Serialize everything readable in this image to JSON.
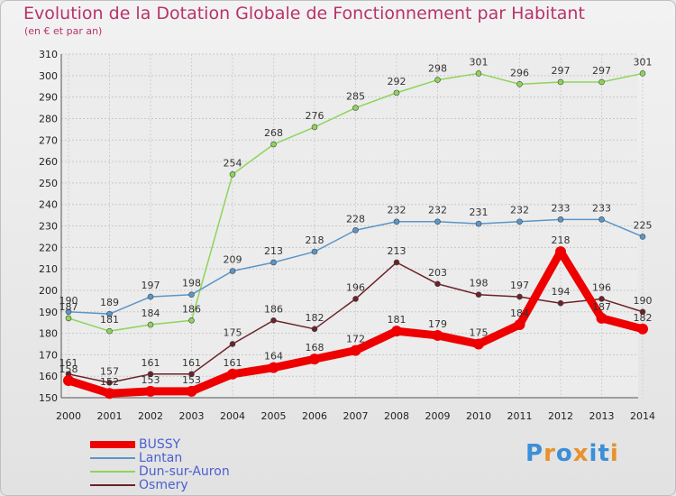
{
  "title": "Evolution de la Dotation Globale de Fonctionnement par Habitant",
  "subtitle": "(en € et par an)",
  "logo": {
    "text": "Proxiti",
    "letters": [
      "P",
      "r",
      "o",
      "x",
      "i",
      "t",
      "i"
    ],
    "colors": [
      "#3a8fd8",
      "#e8912d",
      "#3a8fd8",
      "#e8912d",
      "#3a8fd8",
      "#3a8fd8",
      "#e8912d"
    ]
  },
  "chart_data": {
    "type": "line",
    "title": "Evolution de la Dotation Globale de Fonctionnement par Habitant",
    "ylabel": "(en € et par an)",
    "categories": [
      "2000",
      "2001",
      "2002",
      "2003",
      "2004",
      "2005",
      "2006",
      "2007",
      "2008",
      "2009",
      "2010",
      "2011",
      "2012",
      "2013",
      "2014"
    ],
    "ylim": [
      150,
      310
    ],
    "yticks": [
      "150",
      "160",
      "170",
      "180",
      "190",
      "200",
      "210",
      "220",
      "230",
      "240",
      "250",
      "260",
      "270",
      "280",
      "290",
      "300",
      "310"
    ],
    "grid": true,
    "legend": "bottom-left",
    "series": [
      {
        "name": "Dun-sur-Auron",
        "color": "#8ed45a",
        "values": [
          187,
          181,
          184,
          186,
          254,
          268,
          276,
          285,
          292,
          298,
          301,
          296,
          297,
          297,
          301
        ],
        "labels": [
          "187",
          "181",
          "184",
          "186",
          "254",
          "268",
          "276",
          "285",
          "292",
          "298",
          "301",
          "296",
          "297",
          "297",
          "301"
        ]
      },
      {
        "name": "Lantan",
        "color": "#5b96c8",
        "values": [
          190,
          189,
          197,
          198,
          209,
          213,
          218,
          228,
          232,
          232,
          231,
          232,
          233,
          233,
          225
        ],
        "labels": [
          "190",
          "189",
          "197",
          "198",
          "209",
          "213",
          "218",
          "228",
          "232",
          "232",
          "231",
          "232",
          "233",
          "233",
          "225"
        ]
      },
      {
        "name": "Osmery",
        "color": "#6b2228",
        "values": [
          161,
          157,
          161,
          161,
          175,
          186,
          182,
          196,
          213,
          203,
          198,
          197,
          194,
          196,
          190
        ],
        "labels": [
          "161",
          "157",
          "161",
          "161",
          "175",
          "186",
          "182",
          "196",
          "213",
          "203",
          "198",
          "197",
          "194",
          "196",
          "190"
        ]
      },
      {
        "name": "BUSSY",
        "color": "#ee0000",
        "values": [
          158,
          152,
          153,
          153,
          161,
          164,
          168,
          172,
          181,
          179,
          175,
          184,
          218,
          187,
          182
        ],
        "labels": [
          "158",
          "152",
          "153",
          "153",
          "161",
          "164",
          "168",
          "172",
          "181",
          "179",
          "175",
          "184",
          "218",
          "187",
          "182"
        ]
      }
    ]
  },
  "legend_items": [
    {
      "label": "BUSSY",
      "color": "#ee0000"
    },
    {
      "label": "Lantan",
      "color": "#5b96c8"
    },
    {
      "label": "Dun-sur-Auron",
      "color": "#8ed45a"
    },
    {
      "label": "Osmery",
      "color": "#6b2228"
    }
  ]
}
